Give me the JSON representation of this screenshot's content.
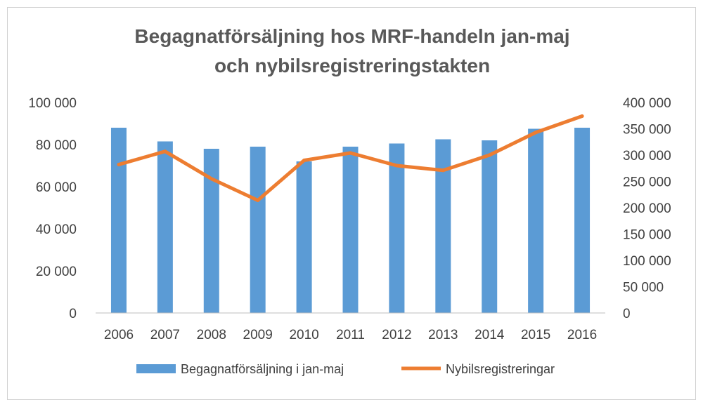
{
  "chart_data": {
    "type": "bar+line",
    "title_lines": [
      "Begagnatförsäljning hos MRF-handeln jan-maj",
      "och nybilsregistreringstakten"
    ],
    "categories": [
      "2006",
      "2007",
      "2008",
      "2009",
      "2010",
      "2011",
      "2012",
      "2013",
      "2014",
      "2015",
      "2016"
    ],
    "series": [
      {
        "name": "Begagnatförsäljning i jan-maj",
        "type": "bar",
        "axis": "left",
        "color": "#5b9bd5",
        "values": [
          88000,
          81500,
          78000,
          79000,
          72000,
          79000,
          80500,
          82500,
          82000,
          87500,
          88000
        ]
      },
      {
        "name": "Nybilsregistreringar",
        "type": "line",
        "axis": "right",
        "color": "#ed7d31",
        "values": [
          282000,
          307000,
          255000,
          214000,
          290000,
          304000,
          280000,
          271000,
          300000,
          343000,
          374000
        ]
      }
    ],
    "y_left": {
      "min": 0,
      "max": 100000,
      "ticks": [
        0,
        20000,
        40000,
        60000,
        80000,
        100000
      ],
      "tick_labels": [
        "0",
        "20 000",
        "40 000",
        "60 000",
        "80 000",
        "100 000"
      ]
    },
    "y_right": {
      "min": 0,
      "max": 400000,
      "ticks": [
        0,
        50000,
        100000,
        150000,
        200000,
        250000,
        300000,
        350000,
        400000
      ],
      "tick_labels": [
        "0",
        "50 000",
        "100 000",
        "150 000",
        "200 000",
        "250 000",
        "300 000",
        "350 000",
        "400 000"
      ]
    },
    "grid": false,
    "legend_position": "bottom"
  }
}
